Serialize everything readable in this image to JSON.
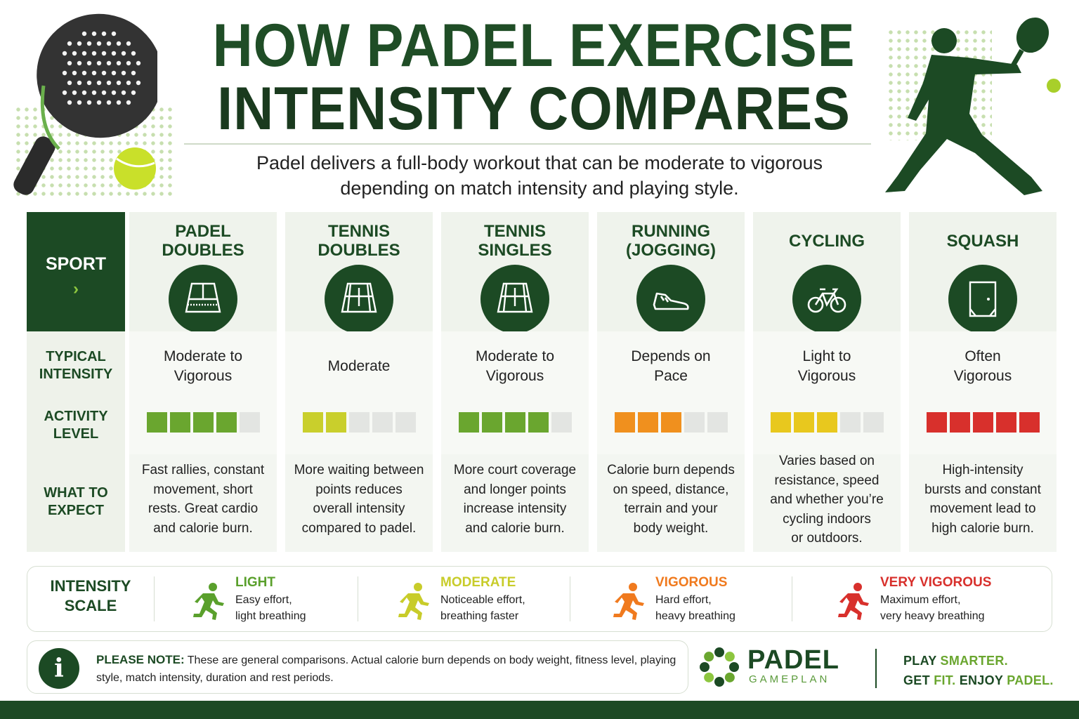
{
  "title_line1": "HOW PADEL EXERCISE",
  "title_line2": "INTENSITY COMPARES",
  "subtitle": "Padel delivers a full-body workout that can be moderate to vigorous depending on match intensity and playing style.",
  "row_labels": {
    "sport": "SPORT",
    "sport_arrow": "›",
    "intensity_1": "TYPICAL",
    "intensity_2": "INTENSITY",
    "activity_1": "ACTIVITY",
    "activity_2": "LEVEL",
    "expect_1": "WHAT TO",
    "expect_2": "EXPECT"
  },
  "colors": {
    "dark_green": "#1c4a24",
    "light": "#8dc63f",
    "moderate": "#d4d43a",
    "vigorous": "#f08a24",
    "very_vigorous": "#d8302c",
    "empty": "#e3e5e2"
  },
  "sports": [
    {
      "name_1": "PADEL",
      "name_2": "DOUBLES",
      "icon": "padel-court-icon",
      "intensity_1": "Moderate to",
      "intensity_2": "Vigorous",
      "level": 4,
      "level_color": "#6aa62f",
      "expect": [
        "Fast rallies, constant",
        "movement, short",
        "rests. Great cardio",
        "and calorie burn."
      ]
    },
    {
      "name_1": "TENNIS",
      "name_2": "DOUBLES",
      "icon": "tennis-court-icon",
      "intensity_1": "Moderate",
      "intensity_2": "",
      "level": 2,
      "level_color": "#c9cf2c",
      "expect": [
        "More waiting between",
        "points reduces",
        "overall intensity",
        "compared to padel."
      ]
    },
    {
      "name_1": "TENNIS",
      "name_2": "SINGLES",
      "icon": "tennis-court-icon",
      "intensity_1": "Moderate to",
      "intensity_2": "Vigorous",
      "level": 4,
      "level_color": "#6aa62f",
      "expect": [
        "More court coverage",
        "and longer points",
        "increase intensity",
        "and calorie burn."
      ]
    },
    {
      "name_1": "RUNNING",
      "name_2": "(JOGGING)",
      "icon": "running-shoe-icon",
      "intensity_1": "Depends on",
      "intensity_2": "Pace",
      "level": 3,
      "level_color": "#f0901e",
      "expect": [
        "Calorie burn depends",
        "on speed, distance,",
        "terrain and your",
        "body weight."
      ]
    },
    {
      "name_1": "CYCLING",
      "name_2": "",
      "icon": "bicycle-icon",
      "intensity_1": "Light to",
      "intensity_2": "Vigorous",
      "level": 3,
      "level_color": "#e8c81e",
      "expect": [
        "Varies based on",
        "resistance, speed",
        "and whether you’re",
        "cycling indoors",
        "or outdoors."
      ]
    },
    {
      "name_1": "SQUASH",
      "name_2": "",
      "icon": "squash-court-icon",
      "intensity_1": "Often",
      "intensity_2": "Vigorous",
      "level": 5,
      "level_color": "#d8302c",
      "expect": [
        "High-intensity",
        "bursts and constant",
        "movement lead to",
        "high calorie burn."
      ]
    }
  ],
  "scale": {
    "label_1": "INTENSITY",
    "label_2": "SCALE",
    "items": [
      {
        "name": "LIGHT",
        "desc_1": "Easy effort,",
        "desc_2": "light breathing",
        "color": "#5aa02c",
        "icon": "runner-icon"
      },
      {
        "name": "MODERATE",
        "desc_1": "Noticeable effort,",
        "desc_2": "breathing faster",
        "color": "#c8cc2a",
        "icon": "runner-icon"
      },
      {
        "name": "VIGOROUS",
        "desc_1": "Hard effort,",
        "desc_2": "heavy breathing",
        "color": "#f07a1e",
        "icon": "runner-icon"
      },
      {
        "name": "VERY VIGOROUS",
        "desc_1": "Maximum effort,",
        "desc_2": "very heavy breathing",
        "color": "#d8302c",
        "icon": "runner-icon"
      }
    ]
  },
  "note": {
    "label": "PLEASE NOTE:",
    "text": " These are general comparisons. Actual calorie burn depends on body weight, fitness level, playing style, match intensity, duration and rest periods.",
    "icon_glyph": "i"
  },
  "brand": {
    "name": "PADEL",
    "sub": "GAMEPLAN",
    "tag1_a": "PLAY ",
    "tag1_b": "SMARTER.",
    "tag2_a": "GET ",
    "tag2_b": "FIT.",
    "tag2_c": " ENJOY ",
    "tag2_d": "PADEL."
  }
}
